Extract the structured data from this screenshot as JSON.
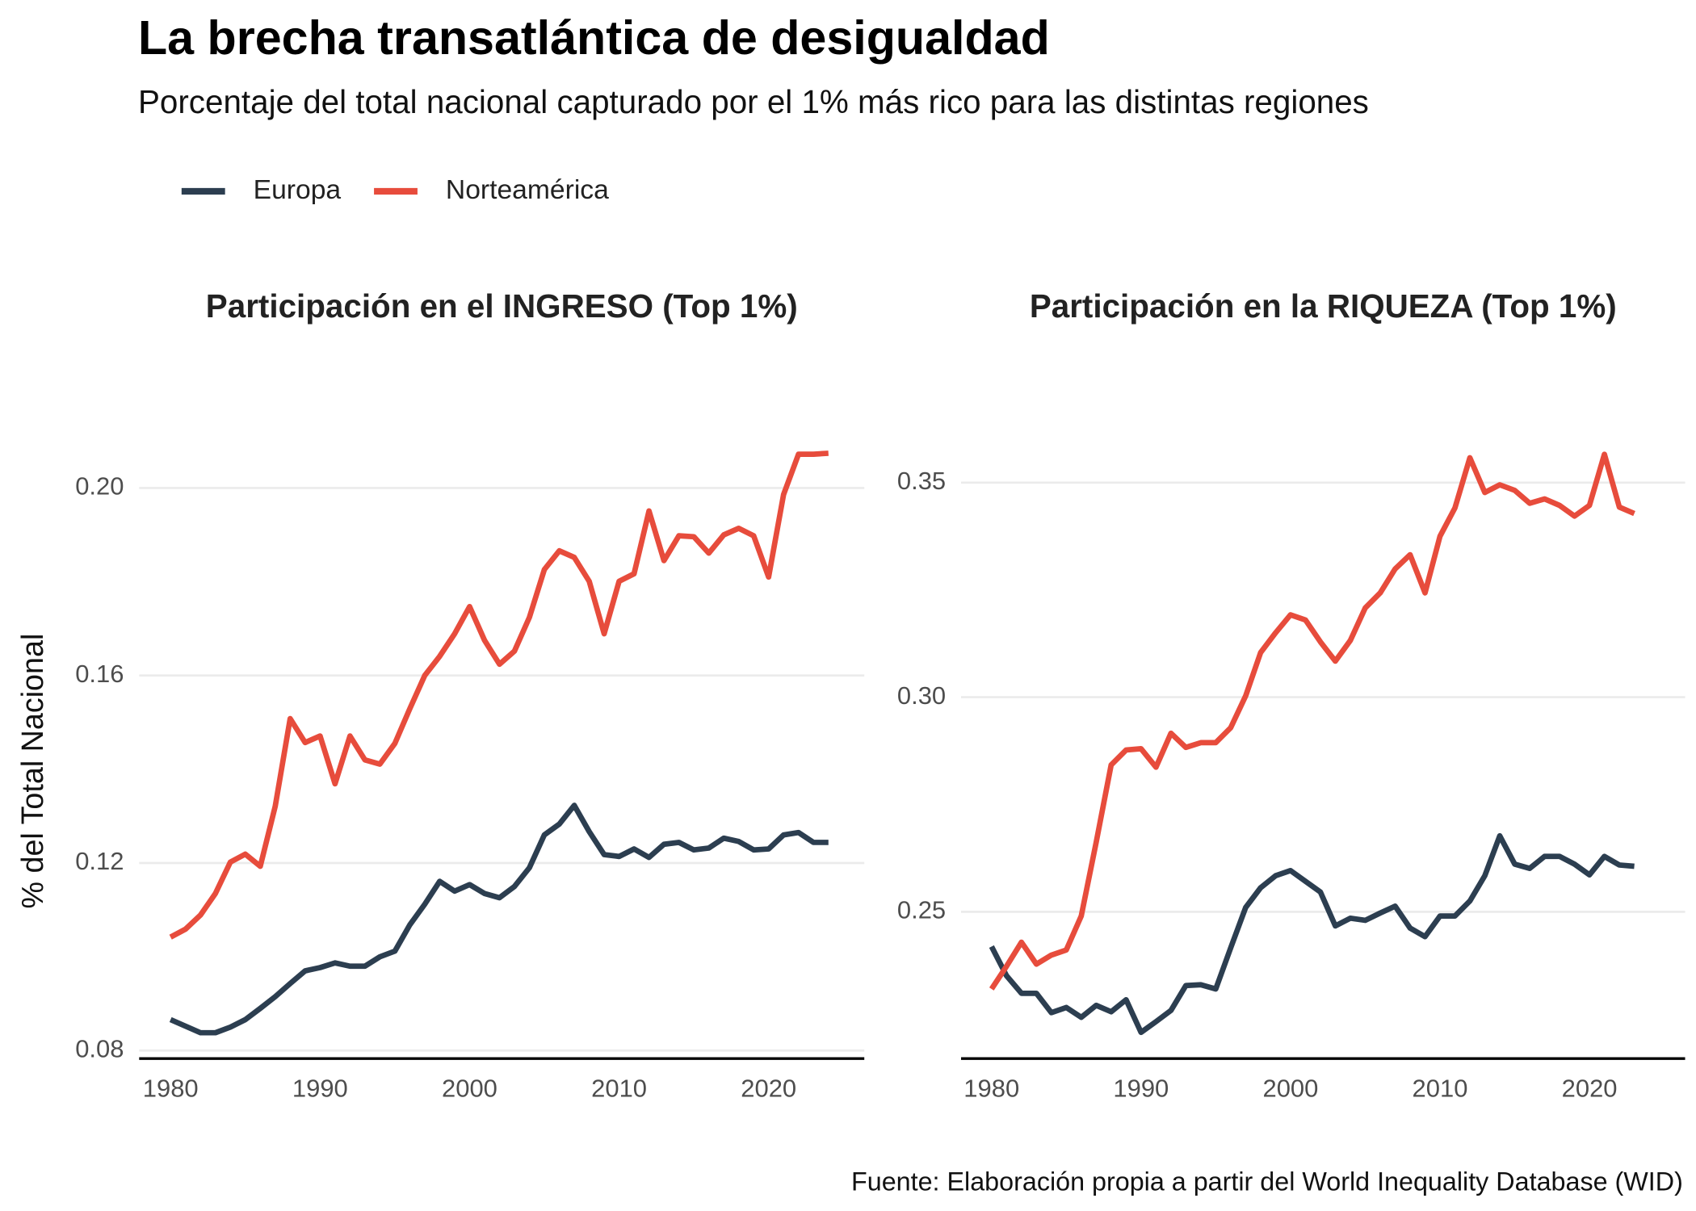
{
  "title": "La brecha transatlántica de desigualdad",
  "subtitle": "Porcentaje del total nacional capturado por el 1% más rico para las distintas regiones",
  "caption": "Fuente: Elaboración propia a partir del World Inequality Database (WID)",
  "chart_data": [
    {
      "type": "line",
      "title": "Participación en el INGRESO (Top 1%)",
      "y_label": "% del Total Nacional",
      "x": [
        1980,
        1981,
        1982,
        1983,
        1984,
        1985,
        1986,
        1987,
        1988,
        1989,
        1990,
        1991,
        1992,
        1993,
        1994,
        1995,
        1996,
        1997,
        1998,
        1999,
        2000,
        2001,
        2002,
        2003,
        2004,
        2005,
        2006,
        2007,
        2008,
        2009,
        2010,
        2011,
        2012,
        2013,
        2014,
        2015,
        2016,
        2017,
        2018,
        2019,
        2020,
        2021,
        2022,
        2023,
        2024
      ],
      "series": [
        {
          "name": "Europa",
          "color": "#2c3e50",
          "values": [
            0.0866,
            0.0852,
            0.0838,
            0.0838,
            0.085,
            0.0866,
            0.089,
            0.0915,
            0.0943,
            0.097,
            0.0977,
            0.0987,
            0.098,
            0.098,
            0.1,
            0.1012,
            0.1068,
            0.1112,
            0.1161,
            0.114,
            0.1154,
            0.1135,
            0.1126,
            0.115,
            0.119,
            0.126,
            0.1283,
            0.1323,
            0.1267,
            0.1218,
            0.1214,
            0.123,
            0.1212,
            0.124,
            0.1244,
            0.1228,
            0.1232,
            0.1253,
            0.1246,
            0.1228,
            0.123,
            0.126,
            0.1265,
            0.1244,
            0.1244
          ]
        },
        {
          "name": "Norteamérica",
          "color": "#e74c3c",
          "values": [
            0.1042,
            0.1059,
            0.1089,
            0.1135,
            0.1202,
            0.1219,
            0.1193,
            0.1321,
            0.1508,
            0.1457,
            0.1471,
            0.1369,
            0.1471,
            0.142,
            0.1411,
            0.1455,
            0.1529,
            0.16,
            0.1641,
            0.1689,
            0.1747,
            0.1675,
            0.1624,
            0.1652,
            0.1724,
            0.1826,
            0.1866,
            0.1852,
            0.1801,
            0.1689,
            0.1801,
            0.1817,
            0.1951,
            0.1845,
            0.1898,
            0.1896,
            0.1861,
            0.19,
            0.1914,
            0.1898,
            0.181,
            0.1986,
            0.2072,
            0.2072,
            0.2074
          ]
        }
      ],
      "xlim": [
        1977.9,
        2026.4
      ],
      "xticks": [
        1980,
        1990,
        2000,
        2010,
        2020
      ],
      "ylim": [
        0.0783,
        0.2102
      ],
      "yticks": [
        0.08,
        0.12,
        0.16,
        {
          "value": 0.2,
          "label": "0.20"
        }
      ],
      "grid": true
    },
    {
      "type": "line",
      "title": "Participación en la RIQUEZA (Top 1%)",
      "x": [
        1980,
        1981,
        1982,
        1983,
        1984,
        1985,
        1986,
        1987,
        1988,
        1989,
        1990,
        1991,
        1992,
        1993,
        1994,
        1995,
        1996,
        1997,
        1998,
        1999,
        2000,
        2001,
        2002,
        2003,
        2004,
        2005,
        2006,
        2007,
        2008,
        2009,
        2010,
        2011,
        2012,
        2013,
        2014,
        2015,
        2016,
        2017,
        2018,
        2019,
        2020,
        2021,
        2022,
        2023
      ],
      "series": [
        {
          "name": "Europa",
          "color": "#2c3e50",
          "values": [
            0.2419,
            0.2351,
            0.231,
            0.231,
            0.2265,
            0.2277,
            0.2254,
            0.2282,
            0.2267,
            0.2295,
            0.2219,
            0.2244,
            0.227,
            0.2328,
            0.233,
            0.232,
            0.2416,
            0.251,
            0.2556,
            0.2584,
            0.2596,
            0.2571,
            0.2546,
            0.2467,
            0.2485,
            0.248,
            0.2497,
            0.2513,
            0.2462,
            0.2442,
            0.249,
            0.249,
            0.2525,
            0.2584,
            0.2677,
            0.2611,
            0.2601,
            0.2629,
            0.2629,
            0.2611,
            0.2586,
            0.2629,
            0.2609,
            0.2606
          ]
        },
        {
          "name": "Norteamérica",
          "color": "#e74c3c",
          "values": [
            0.232,
            0.2373,
            0.2429,
            0.2378,
            0.2399,
            0.2411,
            0.249,
            0.2662,
            0.2842,
            0.2877,
            0.288,
            0.2837,
            0.2916,
            0.2883,
            0.2894,
            0.2894,
            0.2929,
            0.3003,
            0.3104,
            0.315,
            0.3192,
            0.318,
            0.3129,
            0.3084,
            0.3132,
            0.3208,
            0.3243,
            0.3299,
            0.3332,
            0.3243,
            0.3375,
            0.3441,
            0.3558,
            0.3477,
            0.3495,
            0.3482,
            0.3452,
            0.3462,
            0.3447,
            0.3422,
            0.3447,
            0.3566,
            0.3443,
            0.3428
          ]
        }
      ],
      "xlim": [
        1977.96,
        2026.4
      ],
      "xticks": [
        1980,
        1990,
        2000,
        2010,
        2020
      ],
      "ylim": [
        0.2158,
        0.3599
      ],
      "yticks": [
        0.25,
        {
          "value": 0.3,
          "label": "0.30"
        },
        0.35
      ],
      "grid": true
    }
  ]
}
